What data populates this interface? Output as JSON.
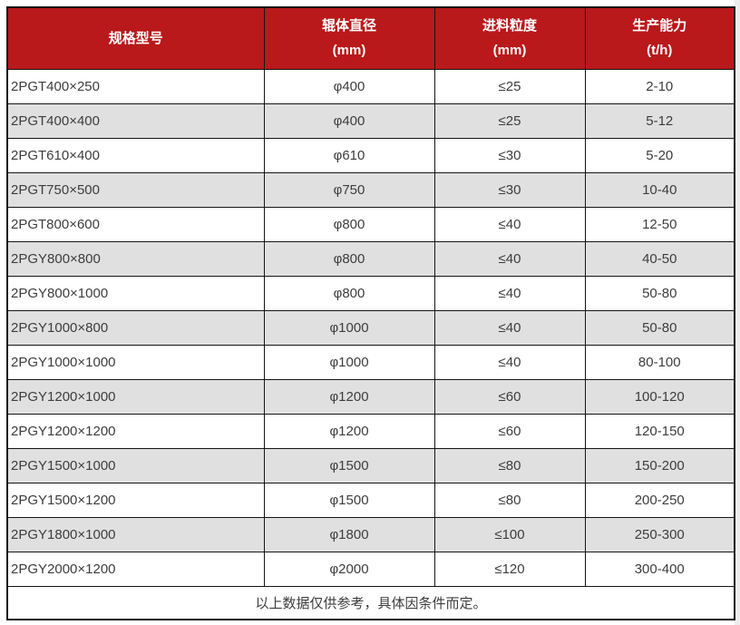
{
  "chart_data": {
    "type": "table",
    "columns": [
      {
        "title": "规格型号",
        "unit": ""
      },
      {
        "title": "辊体直径",
        "unit": "(mm)"
      },
      {
        "title": "进料粒度",
        "unit": "(mm)"
      },
      {
        "title": "生产能力",
        "unit": "(t/h)"
      }
    ],
    "rows": [
      [
        "2PGT400×250",
        "φ400",
        "≤25",
        "2-10"
      ],
      [
        "2PGT400×400",
        "φ400",
        "≤25",
        "5-12"
      ],
      [
        "2PGT610×400",
        "φ610",
        "≤30",
        "5-20"
      ],
      [
        "2PGT750×500",
        "φ750",
        "≤30",
        "10-40"
      ],
      [
        "2PGT800×600",
        "φ800",
        "≤40",
        "12-50"
      ],
      [
        "2PGY800×800",
        "φ800",
        "≤40",
        "40-50"
      ],
      [
        "2PGY800×1000",
        "φ800",
        "≤40",
        "50-80"
      ],
      [
        "2PGY1000×800",
        "φ1000",
        "≤40",
        "50-80"
      ],
      [
        "2PGY1000×1000",
        "φ1000",
        "≤40",
        "80-100"
      ],
      [
        "2PGY1200×1000",
        "φ1200",
        "≤60",
        "100-120"
      ],
      [
        "2PGY1200×1200",
        "φ1200",
        "≤60",
        "120-150"
      ],
      [
        "2PGY1500×1000",
        "φ1500",
        "≤80",
        "150-200"
      ],
      [
        "2PGY1500×1200",
        "φ1500",
        "≤80",
        "200-250"
      ],
      [
        "2PGY1800×1000",
        "φ1800",
        "≤100",
        "250-300"
      ],
      [
        "2PGY2000×1200",
        "φ2000",
        "≤120",
        "300-400"
      ]
    ],
    "footer_note": "以上数据仅供参考，具体因条件而定。",
    "layout": {
      "striped": true,
      "striped_rows": "even",
      "first_column_align": "left",
      "other_columns_align": "center",
      "grid": true
    }
  },
  "colors": {
    "header_bg": "#B9191B",
    "header_text": "#FFFFFF",
    "row_bg": "#FFFFFF",
    "row_alt_bg": "#E0E0E0",
    "border": "#151515",
    "cell_text": "#3D3D3D"
  }
}
